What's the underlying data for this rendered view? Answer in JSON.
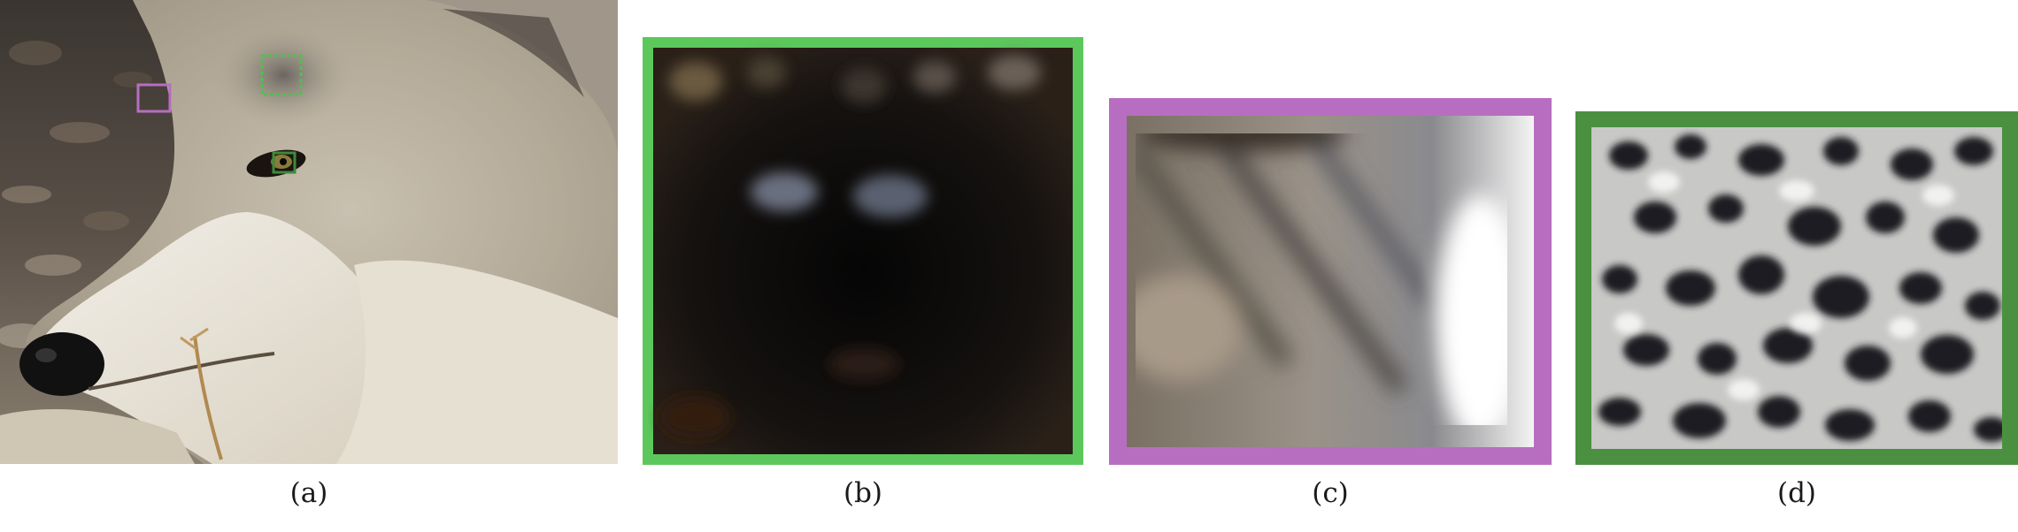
{
  "figure": {
    "panels": [
      {
        "id": "a",
        "caption": "(a)",
        "content": "wolf-head-photo"
      },
      {
        "id": "b",
        "caption": "(b)",
        "content": "eye-closeup",
        "border_color": "#5cc85c"
      },
      {
        "id": "c",
        "caption": "(c)",
        "content": "background-closeup",
        "border_color": "#b86ec0"
      },
      {
        "id": "d",
        "caption": "(d)",
        "content": "fur-closeup",
        "border_color": "#4a9040"
      }
    ],
    "crop_boxes": [
      {
        "panel": "b",
        "color": "#4fc04f"
      },
      {
        "panel": "c",
        "color": "#b86ec0"
      },
      {
        "panel": "d",
        "color": "#3f8a3a"
      }
    ]
  }
}
